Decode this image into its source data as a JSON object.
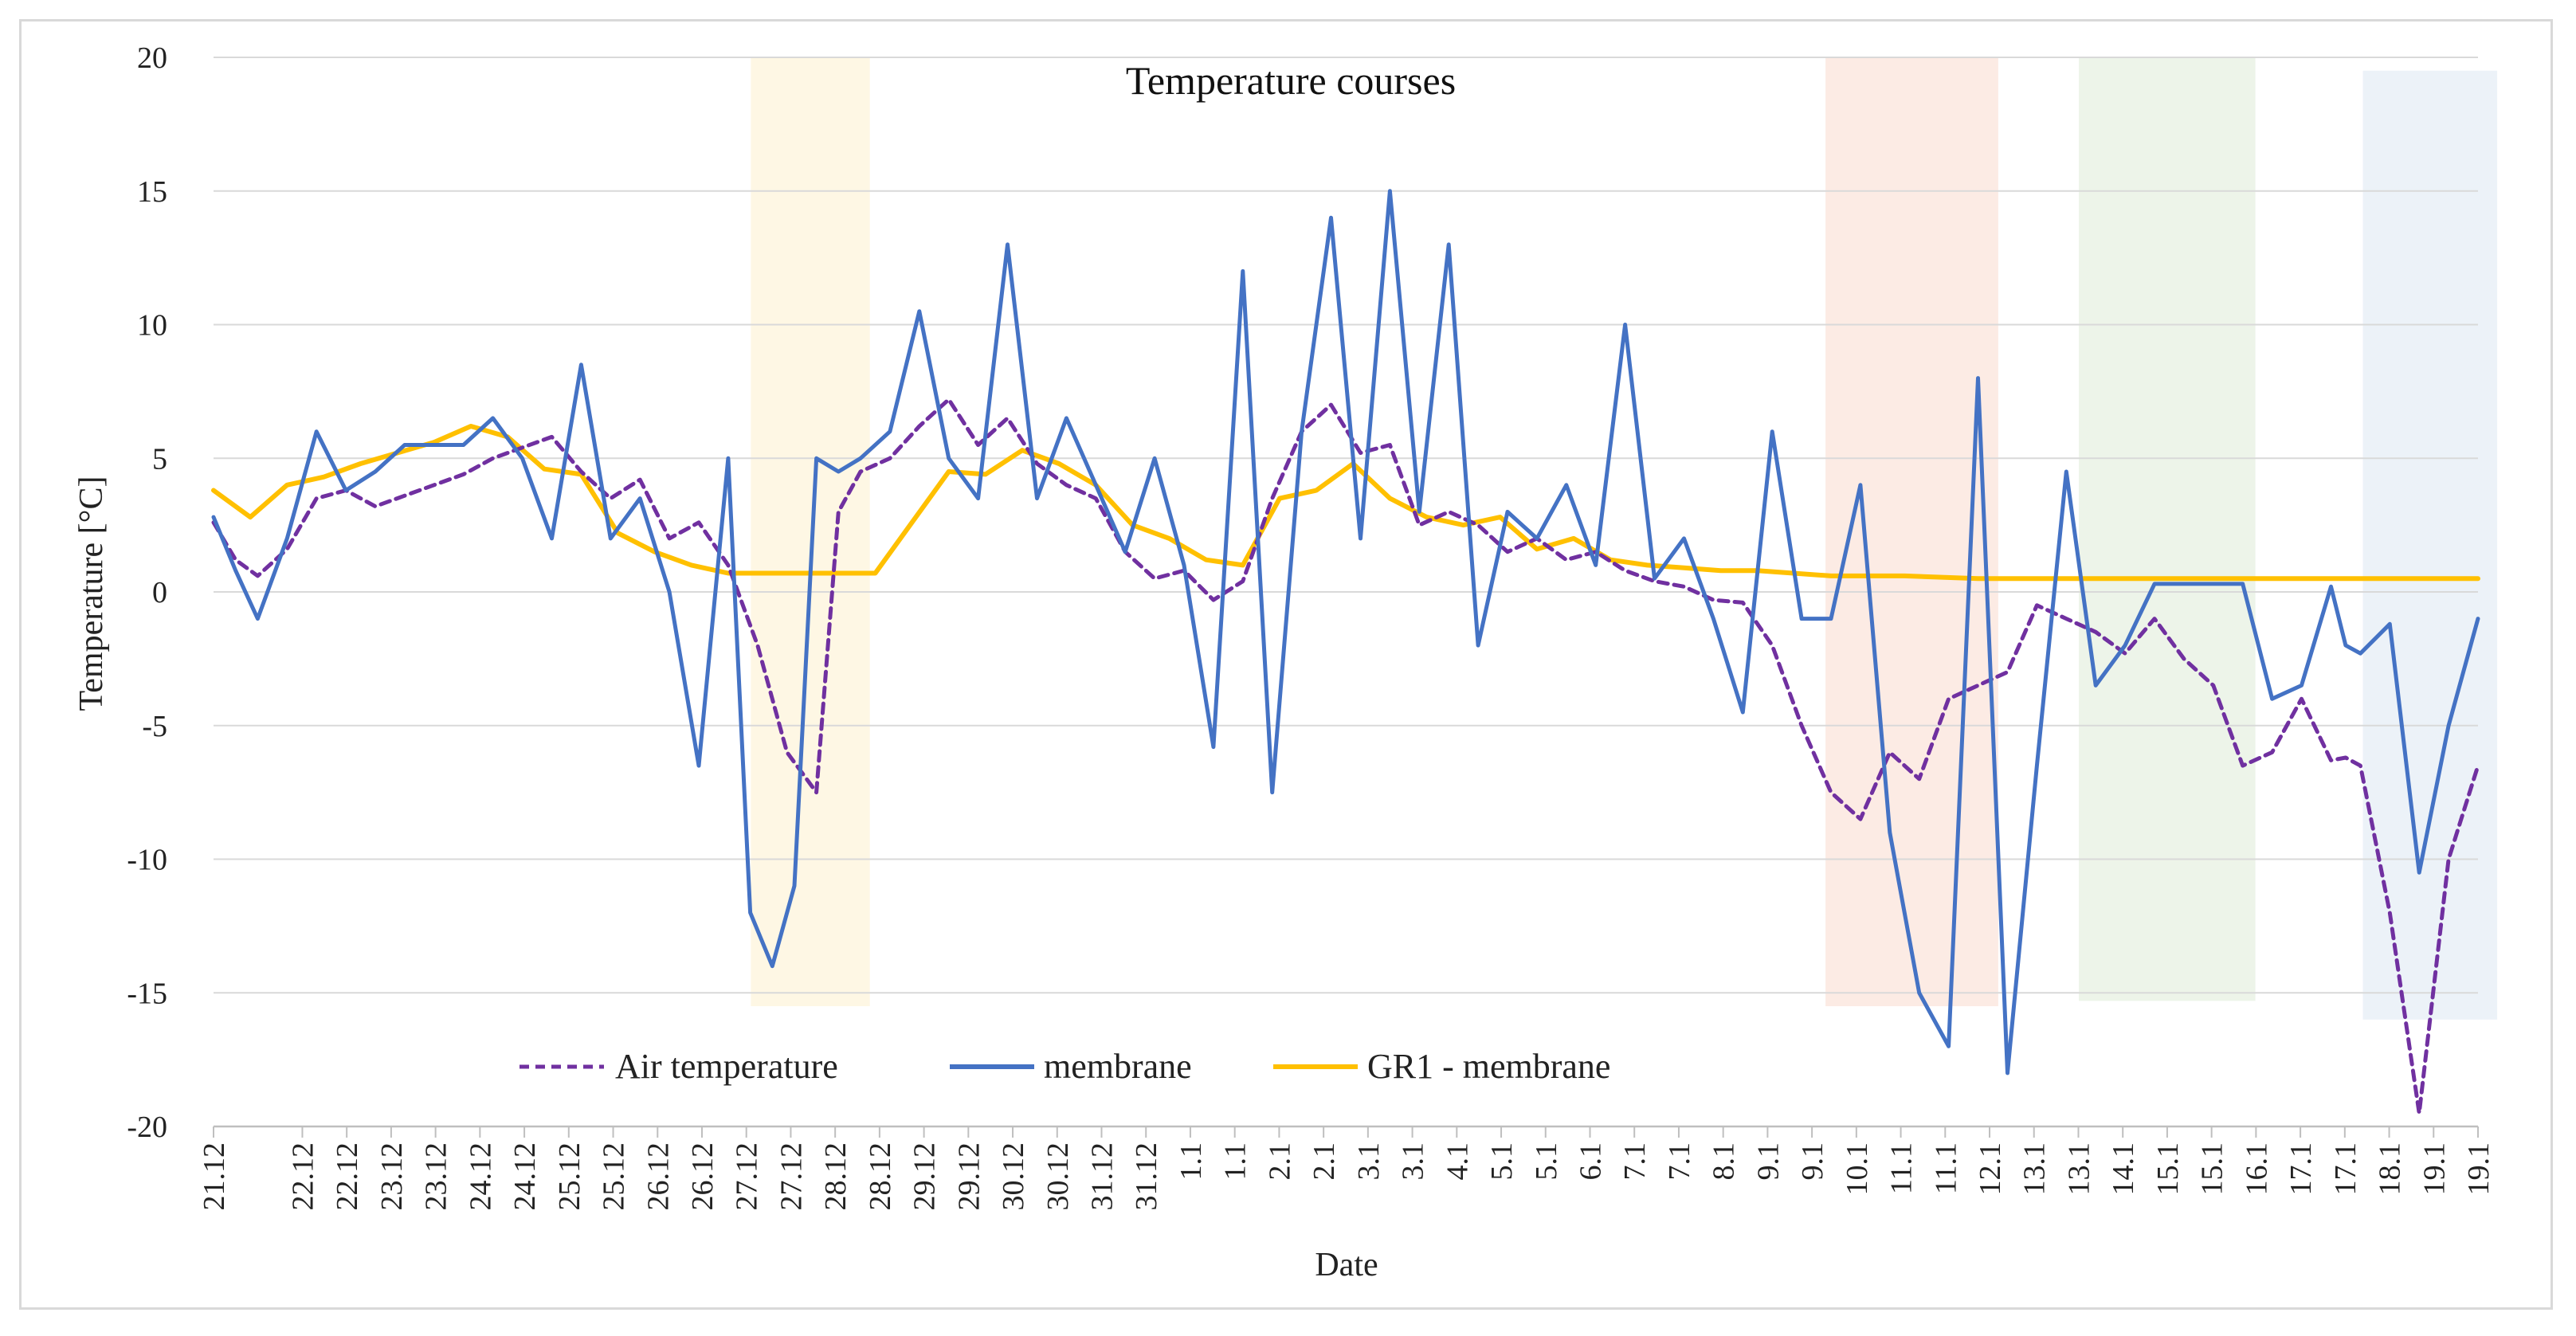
{
  "chart_data": {
    "type": "line",
    "title": "Temperature courses",
    "xlabel": "Date",
    "ylabel": "Temperature [°C]",
    "ylim": [
      -20,
      20
    ],
    "yticks": [
      -20,
      -15,
      -10,
      -5,
      0,
      5,
      10,
      15,
      20
    ],
    "x_range": [
      0,
      29.5
    ],
    "grid": "horizontal",
    "legend_position": "bottom-center",
    "x_ticks": [
      {
        "x": 0.0,
        "label": "21.12"
      },
      {
        "x": 1.0,
        "label": "22.12"
      },
      {
        "x": 1.5,
        "label": "22.12"
      },
      {
        "x": 2.0,
        "label": "23.12"
      },
      {
        "x": 2.5,
        "label": "23.12"
      },
      {
        "x": 3.0,
        "label": "24.12"
      },
      {
        "x": 3.5,
        "label": "24.12"
      },
      {
        "x": 4.0,
        "label": "25.12"
      },
      {
        "x": 4.5,
        "label": "25.12"
      },
      {
        "x": 5.0,
        "label": "26.12"
      },
      {
        "x": 5.5,
        "label": "26.12"
      },
      {
        "x": 6.0,
        "label": "27.12"
      },
      {
        "x": 6.5,
        "label": "27.12"
      },
      {
        "x": 7.0,
        "label": "28.12"
      },
      {
        "x": 7.5,
        "label": "28.12"
      },
      {
        "x": 8.0,
        "label": "29.12"
      },
      {
        "x": 8.5,
        "label": "29.12"
      },
      {
        "x": 9.0,
        "label": "30.12"
      },
      {
        "x": 9.5,
        "label": "30.12"
      },
      {
        "x": 10.0,
        "label": "31.12"
      },
      {
        "x": 10.5,
        "label": "31.12"
      },
      {
        "x": 11.0,
        "label": "1.1"
      },
      {
        "x": 11.5,
        "label": "1.1"
      },
      {
        "x": 12.0,
        "label": "2.1"
      },
      {
        "x": 12.5,
        "label": "2.1"
      },
      {
        "x": 13.0,
        "label": "3.1"
      },
      {
        "x": 13.5,
        "label": "3.1"
      },
      {
        "x": 14.0,
        "label": "4.1"
      },
      {
        "x": 14.5,
        "label": "5.1"
      },
      {
        "x": 15.0,
        "label": "5.1"
      },
      {
        "x": 15.5,
        "label": "6.1"
      },
      {
        "x": 16.0,
        "label": "7.1"
      },
      {
        "x": 16.5,
        "label": "7.1"
      },
      {
        "x": 17.0,
        "label": "8.1"
      },
      {
        "x": 17.5,
        "label": "9.1"
      },
      {
        "x": 18.0,
        "label": "9.1"
      },
      {
        "x": 18.5,
        "label": "10.1"
      },
      {
        "x": 19.0,
        "label": "11.1"
      },
      {
        "x": 19.5,
        "label": "11.1"
      },
      {
        "x": 20.0,
        "label": "12.1"
      },
      {
        "x": 20.5,
        "label": "13.1"
      },
      {
        "x": 21.0,
        "label": "13.1"
      },
      {
        "x": 21.5,
        "label": "14.1"
      },
      {
        "x": 22.0,
        "label": "15.1"
      },
      {
        "x": 22.5,
        "label": "15.1"
      },
      {
        "x": 23.0,
        "label": "16.1"
      },
      {
        "x": 23.5,
        "label": "17.1"
      },
      {
        "x": 24.0,
        "label": "17.1"
      },
      {
        "x": 24.5,
        "label": "18.1"
      },
      {
        "x": 25.0,
        "label": "19.1"
      },
      {
        "x": 25.5,
        "label": "19.1"
      }
    ],
    "highlight_bands": [
      {
        "x_start": 7.0,
        "x_end": 8.55,
        "y_min": -15.5,
        "y_max": 20,
        "color": "#fdf3d8"
      },
      {
        "x_start": 21.0,
        "x_end": 23.25,
        "y_min": -15.5,
        "y_max": 20,
        "color": "#fbe2d8"
      },
      {
        "x_start": 24.3,
        "x_end": 26.6,
        "y_min": -15.3,
        "y_max": 20,
        "color": "#e6f0e0"
      },
      {
        "x_start": 28.0,
        "x_end": 29.75,
        "y_min": -16.0,
        "y_max": 19.5,
        "color": "#e4ecf5"
      }
    ],
    "series": [
      {
        "name": "Air temperature",
        "color": "#7030a0",
        "style": "dashed",
        "x": [
          0.0,
          0.3,
          0.6,
          1.0,
          1.4,
          1.8,
          2.2,
          2.6,
          3.0,
          3.4,
          3.8,
          4.2,
          4.6,
          5.0,
          5.4,
          5.8,
          6.2,
          6.6,
          7.0,
          7.4,
          7.8,
          8.2,
          8.5,
          8.8,
          9.2,
          9.6,
          10.0,
          10.4,
          10.8,
          11.2,
          11.6,
          12.0,
          12.4,
          12.8,
          13.2,
          13.6,
          14.0,
          14.4,
          14.8,
          15.2,
          15.6,
          16.0,
          16.4,
          16.8,
          17.2,
          17.6,
          18.0,
          18.4,
          18.8,
          19.2,
          19.6,
          20.0,
          20.4,
          20.8,
          21.2,
          21.6,
          22.0,
          22.4,
          22.8,
          23.2,
          23.6,
          24.0,
          24.4,
          24.8,
          25.2,
          25.6,
          26.0,
          26.4,
          26.8,
          27.2,
          27.6,
          28.0,
          28.4,
          28.8,
          29.0,
          29.2,
          29.6,
          30.0,
          30.4,
          30.8
        ],
        "y": [
          2.6,
          1.2,
          0.6,
          1.6,
          3.5,
          3.8,
          3.2,
          3.6,
          4.0,
          4.4,
          5.0,
          5.4,
          5.8,
          4.5,
          3.5,
          4.2,
          2.0,
          2.6,
          1.0,
          -2.0,
          -6.0,
          -7.5,
          3.0,
          4.5,
          5.0,
          6.2,
          7.2,
          5.5,
          6.5,
          4.8,
          4.0,
          3.5,
          1.5,
          0.5,
          0.8,
          -0.3,
          0.4,
          3.5,
          6.0,
          7.0,
          5.2,
          5.5,
          2.5,
          3.0,
          2.5,
          1.5,
          2.0,
          1.2,
          1.5,
          0.8,
          0.4,
          0.2,
          -0.3,
          -0.4,
          -2.0,
          -5.0,
          -7.5,
          -8.5,
          -6.0,
          -7.0,
          -4.0,
          -3.5,
          -3.0,
          -0.5,
          -1.0,
          -1.5,
          -2.3,
          -1.0,
          -2.5,
          -3.5,
          -6.5,
          -6.0,
          -4.0,
          -6.3,
          -6.2,
          -6.5,
          -12.0,
          -19.5,
          -10.0,
          -6.5
        ]
      },
      {
        "name": "membrane",
        "color": "#4472c4",
        "style": "solid",
        "x": [
          0.0,
          0.3,
          0.6,
          1.0,
          1.4,
          1.8,
          2.2,
          2.6,
          3.0,
          3.4,
          3.8,
          4.2,
          4.6,
          5.0,
          5.4,
          5.8,
          6.2,
          6.6,
          7.0,
          7.3,
          7.6,
          7.9,
          8.2,
          8.5,
          8.8,
          9.2,
          9.6,
          10.0,
          10.4,
          10.8,
          11.2,
          11.6,
          12.0,
          12.4,
          12.8,
          13.2,
          13.6,
          14.0,
          14.4,
          14.8,
          15.2,
          15.6,
          16.0,
          16.4,
          16.8,
          17.2,
          17.6,
          18.0,
          18.4,
          18.8,
          19.2,
          19.6,
          20.0,
          20.4,
          20.8,
          21.2,
          21.6,
          22.0,
          22.4,
          22.8,
          23.2,
          23.6,
          24.0,
          24.4,
          24.8,
          25.2,
          25.6,
          26.0,
          26.4,
          26.8,
          27.2,
          27.6,
          28.0,
          28.4,
          28.8,
          29.0,
          29.2,
          29.6,
          30.0,
          30.4,
          30.8
        ],
        "y": [
          2.8,
          0.8,
          -1.0,
          2.0,
          6.0,
          3.8,
          4.5,
          5.5,
          5.5,
          5.5,
          6.5,
          5.0,
          2.0,
          8.5,
          2.0,
          3.5,
          0.0,
          -6.5,
          5.0,
          -12.0,
          -14.0,
          -11.0,
          5.0,
          4.5,
          5.0,
          6.0,
          10.5,
          5.0,
          3.5,
          13.0,
          3.5,
          6.5,
          4.0,
          1.5,
          5.0,
          1.0,
          -5.8,
          12.0,
          -7.5,
          6.0,
          14.0,
          2.0,
          15.0,
          3.0,
          13.0,
          -2.0,
          3.0,
          2.0,
          4.0,
          1.0,
          10.0,
          0.5,
          2.0,
          -1.0,
          -4.5,
          6.0,
          -1.0,
          -1.0,
          4.0,
          -9.0,
          -15.0,
          -17.0,
          8.0,
          -18.0,
          -6.5,
          4.5,
          -3.5,
          -2.0,
          0.3,
          0.3,
          0.3,
          0.3,
          -4.0,
          -3.5,
          0.2,
          -2.0,
          -2.3,
          -1.2,
          -10.5,
          -5.0,
          -1.0
        ]
      },
      {
        "name": "GR1 - membrane",
        "color": "#ffc000",
        "style": "solid",
        "x": [
          0.0,
          0.5,
          1.0,
          1.5,
          2.0,
          2.5,
          3.0,
          3.5,
          4.0,
          4.5,
          5.0,
          5.5,
          6.0,
          6.5,
          7.0,
          7.5,
          8.0,
          8.5,
          9.0,
          9.5,
          10.0,
          10.5,
          11.0,
          11.5,
          12.0,
          12.5,
          13.0,
          13.5,
          14.0,
          14.5,
          15.0,
          15.5,
          16.0,
          16.5,
          17.0,
          17.5,
          18.0,
          18.5,
          19.0,
          19.5,
          20.0,
          20.5,
          21.0,
          22.0,
          23.0,
          24.0,
          25.0,
          26.0,
          27.0,
          28.0,
          29.0,
          30.0,
          30.8
        ],
        "y": [
          3.8,
          2.8,
          4.0,
          4.3,
          4.8,
          5.2,
          5.6,
          6.2,
          5.8,
          4.6,
          4.4,
          2.2,
          1.5,
          1.0,
          0.7,
          0.7,
          0.7,
          0.7,
          0.7,
          2.6,
          4.5,
          4.4,
          5.3,
          4.8,
          4.0,
          2.5,
          2.0,
          1.2,
          1.0,
          3.5,
          3.8,
          4.8,
          3.5,
          2.8,
          2.5,
          2.8,
          1.6,
          2.0,
          1.2,
          1.0,
          0.9,
          0.8,
          0.8,
          0.6,
          0.6,
          0.5,
          0.5,
          0.5,
          0.5,
          0.5,
          0.5,
          0.5,
          0.5
        ]
      }
    ]
  }
}
